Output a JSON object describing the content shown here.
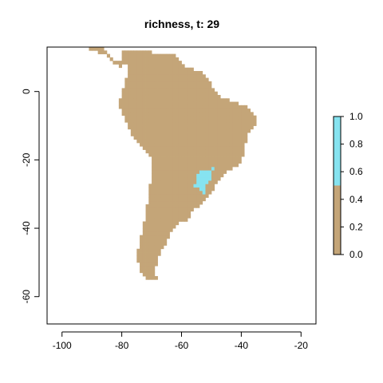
{
  "chart_data": {
    "type": "heatmap",
    "title": "richness, t: 29",
    "xlabel": "",
    "ylabel": "",
    "xlim": [
      -105,
      -15
    ],
    "ylim": [
      -68,
      13
    ],
    "x_ticks": [
      -100,
      -80,
      -60,
      -40,
      -20
    ],
    "y_ticks": [
      0,
      -20,
      -40,
      -60
    ],
    "colorbar": {
      "ticks": [
        0.0,
        0.2,
        0.4,
        0.6,
        0.8,
        1.0
      ],
      "tick_labels": [
        "0.0",
        "0.2",
        "0.4",
        "0.6",
        "0.8",
        "1.0"
      ],
      "range": [
        0,
        1
      ],
      "bands": [
        {
          "from": 0.0,
          "to": 0.5,
          "value": 0,
          "color": "#C4A578"
        },
        {
          "from": 0.5,
          "to": 1.0,
          "value": 1,
          "color": "#86E3F0"
        }
      ]
    },
    "land_color": "#C4A578",
    "highlight_color": "#86E3F0",
    "cell_size_deg": 1,
    "richness_1_cells": [
      [
        -54,
        -24
      ],
      [
        -53,
        -24
      ],
      [
        -52,
        -24
      ],
      [
        -51,
        -24
      ],
      [
        -50,
        -23
      ],
      [
        -55,
        -25
      ],
      [
        -54,
        -25
      ],
      [
        -53,
        -25
      ],
      [
        -52,
        -25
      ],
      [
        -51,
        -25
      ],
      [
        -55,
        -26
      ],
      [
        -54,
        -26
      ],
      [
        -53,
        -26
      ],
      [
        -52,
        -26
      ],
      [
        -51,
        -26
      ],
      [
        -55,
        -27
      ],
      [
        -54,
        -27
      ],
      [
        -53,
        -27
      ],
      [
        -52,
        -27
      ],
      [
        -56,
        -28
      ],
      [
        -55,
        -28
      ],
      [
        -54,
        -28
      ],
      [
        -53,
        -28
      ],
      [
        -54,
        -29
      ],
      [
        -53,
        -29
      ],
      [
        -53,
        -30
      ]
    ]
  }
}
